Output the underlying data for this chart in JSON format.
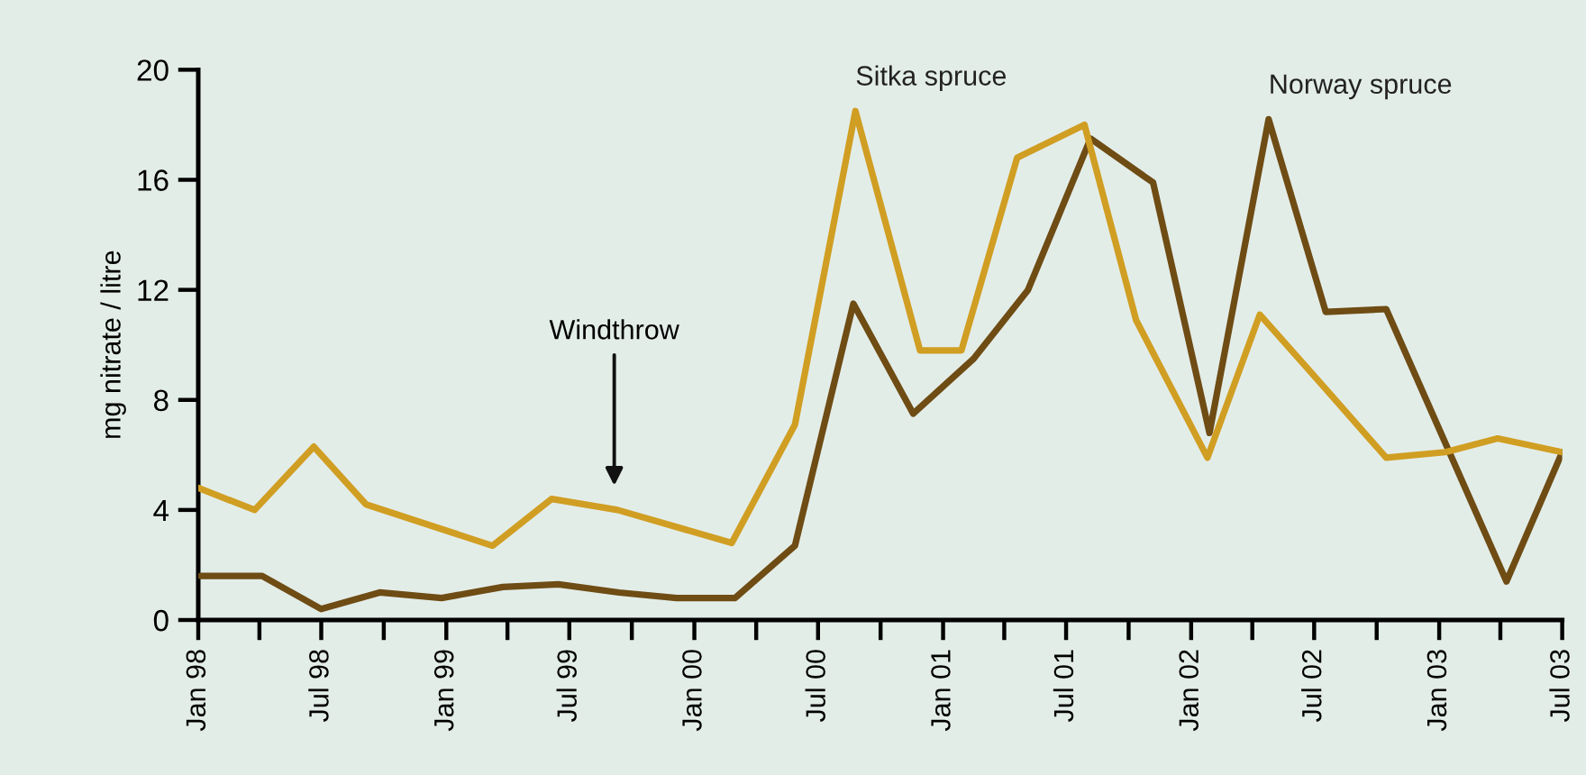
{
  "chart_data": {
    "type": "line",
    "ylabel": "mg nitrate / litre",
    "series": [
      {
        "name": "Sitka spruce",
        "color": "#d09e22",
        "x": [
          "1998-01-01",
          "1998-03-25",
          "1998-06-20",
          "1998-09-05",
          "1999-03-10",
          "1999-06-05",
          "1999-09-10",
          "2000-02-25",
          "2000-05-28",
          "2000-08-25",
          "2000-11-28",
          "2001-01-28",
          "2001-04-20",
          "2001-07-28",
          "2001-10-12",
          "2002-01-25",
          "2002-04-12",
          "2002-07-18",
          "2002-10-15",
          "2003-01-10",
          "2003-03-28",
          "2003-07-01"
        ],
        "values": [
          4.8,
          4.0,
          6.3,
          4.2,
          2.7,
          4.4,
          4.0,
          2.8,
          7.1,
          18.5,
          9.8,
          9.8,
          16.8,
          18.0,
          10.9,
          5.9,
          11.1,
          8.4,
          5.9,
          6.1,
          6.6,
          6.1
        ]
      },
      {
        "name": "Norway spruce",
        "color": "#6e4c14",
        "x": [
          "1998-01-05",
          "1998-04-05",
          "1998-07-01",
          "1998-09-25",
          "1998-12-25",
          "1999-03-25",
          "1999-06-15",
          "1999-09-12",
          "1999-12-06",
          "2000-03-01",
          "2000-05-28",
          "2000-08-22",
          "2000-11-18",
          "2001-02-15",
          "2001-05-06",
          "2001-08-06",
          "2001-11-06",
          "2002-01-28",
          "2002-04-25",
          "2002-07-18",
          "2002-10-15",
          "2003-04-10",
          "2003-07-01"
        ],
        "values": [
          1.6,
          1.6,
          0.4,
          1.0,
          0.8,
          1.2,
          1.3,
          1.0,
          0.8,
          0.8,
          2.7,
          11.5,
          7.5,
          9.5,
          12.0,
          17.5,
          15.9,
          6.8,
          18.2,
          11.2,
          11.3,
          1.4,
          6.1
        ]
      }
    ],
    "annotations": [
      "Windthrow"
    ],
    "xlim": [
      "1998-01-01",
      "2003-07-01"
    ],
    "xticks": [
      {
        "value": "1998-01-01",
        "label": "Jan 98"
      },
      {
        "value": "1998-04-01",
        "label": null
      },
      {
        "value": "1998-07-01",
        "label": "Jul 98"
      },
      {
        "value": "1998-10-01",
        "label": null
      },
      {
        "value": "1999-01-01",
        "label": "Jan 99"
      },
      {
        "value": "1999-04-01",
        "label": null
      },
      {
        "value": "1999-07-01",
        "label": "Jul 99"
      },
      {
        "value": "1999-10-01",
        "label": null
      },
      {
        "value": "2000-01-01",
        "label": "Jan 00"
      },
      {
        "value": "2000-04-01",
        "label": null
      },
      {
        "value": "2000-07-01",
        "label": "Jul 00"
      },
      {
        "value": "2000-10-01",
        "label": null
      },
      {
        "value": "2001-01-01",
        "label": "Jan 01"
      },
      {
        "value": "2001-04-01",
        "label": null
      },
      {
        "value": "2001-07-01",
        "label": "Jul 01"
      },
      {
        "value": "2001-10-01",
        "label": null
      },
      {
        "value": "2002-01-01",
        "label": "Jan 02"
      },
      {
        "value": "2002-04-01",
        "label": null
      },
      {
        "value": "2002-07-01",
        "label": "Jul 02"
      },
      {
        "value": "2002-10-01",
        "label": null
      },
      {
        "value": "2003-01-01",
        "label": "Jan 03"
      },
      {
        "value": "2003-04-01",
        "label": null
      },
      {
        "value": "2003-07-01",
        "label": "Jul 03"
      }
    ],
    "ylim": [
      0,
      20
    ],
    "yticks": [
      0,
      4,
      8,
      12,
      16,
      20
    ],
    "grid": false,
    "legend": false,
    "marker": "none",
    "line_style": "solid"
  }
}
